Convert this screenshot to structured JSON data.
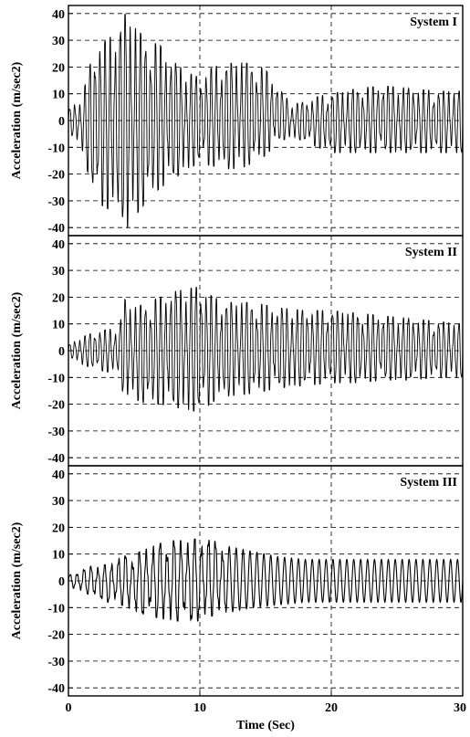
{
  "chart_data": [
    {
      "type": "line",
      "title": "System I",
      "xlabel": "",
      "ylabel": "Acceleration (m/sec2)",
      "xlim": [
        0,
        30
      ],
      "ylim": [
        -43,
        43
      ],
      "xticks": [
        0,
        10,
        20,
        30
      ],
      "yticks": [
        -40,
        -30,
        -20,
        -10,
        0,
        10,
        20,
        30,
        40
      ],
      "grid": "dashed",
      "envelope": {
        "t": [
          0,
          1,
          2,
          3,
          4,
          4.5,
          5,
          6,
          7,
          8,
          9,
          10,
          11,
          12,
          13,
          14,
          15,
          16,
          17,
          18,
          19,
          20,
          22,
          24,
          26,
          28,
          30
        ],
        "upper": [
          4,
          8,
          28,
          30,
          36,
          42,
          35,
          30,
          28,
          22,
          18,
          16,
          20,
          21,
          22,
          21,
          19,
          12,
          6,
          7,
          9,
          10,
          12,
          13,
          12,
          11,
          11
        ],
        "lower": [
          -4,
          -10,
          -30,
          -33,
          -35,
          -40,
          -36,
          -30,
          -25,
          -22,
          -18,
          -16,
          -17,
          -18,
          -18,
          -16,
          -13,
          -8,
          -6,
          -8,
          -10,
          -12,
          -12,
          -12,
          -12,
          -12,
          -12
        ]
      }
    },
    {
      "type": "line",
      "title": "System II",
      "xlabel": "",
      "ylabel": "Acceleration (m/sec2)",
      "xlim": [
        0,
        30
      ],
      "ylim": [
        -43,
        43
      ],
      "xticks": [
        0,
        10,
        20,
        30
      ],
      "yticks": [
        -40,
        -30,
        -20,
        -10,
        0,
        10,
        20,
        30,
        40
      ],
      "grid": "dashed",
      "envelope": {
        "t": [
          0,
          1,
          2,
          3,
          3.9,
          4.1,
          5,
          6,
          7,
          8,
          9,
          10,
          11,
          12,
          14,
          16,
          18,
          20,
          22,
          24,
          26,
          28,
          30
        ],
        "upper": [
          2,
          5,
          7,
          8,
          8,
          20,
          16,
          18,
          20,
          22,
          23,
          24,
          20,
          18,
          18,
          16,
          15,
          15,
          14,
          13,
          12,
          11,
          10
        ],
        "lower": [
          -2,
          -5,
          -7,
          -8,
          -8,
          -15,
          -18,
          -20,
          -20,
          -21,
          -22,
          -23,
          -19,
          -17,
          -16,
          -14,
          -13,
          -12,
          -12,
          -11,
          -11,
          -10,
          -10
        ]
      }
    },
    {
      "type": "line",
      "title": "System III",
      "xlabel": "Time (Sec)",
      "ylabel": "Acceleration (m/sec2)",
      "xlim": [
        0,
        30
      ],
      "ylim": [
        -43,
        43
      ],
      "xticks": [
        0,
        10,
        20,
        30
      ],
      "yticks": [
        -40,
        -30,
        -20,
        -10,
        0,
        10,
        20,
        30,
        40
      ],
      "grid": "dashed",
      "envelope": {
        "t": [
          0,
          1,
          2,
          3,
          4,
          5,
          6,
          7,
          8,
          9,
          10,
          11,
          12,
          14,
          16,
          18,
          20,
          22,
          24,
          26,
          28,
          30
        ],
        "upper": [
          2,
          4,
          6,
          6,
          9,
          10,
          12,
          14,
          15,
          15,
          16,
          15,
          13,
          11,
          9,
          8,
          8,
          8,
          8,
          8,
          8,
          8
        ],
        "lower": [
          -2,
          -4,
          -6,
          -8,
          -9,
          -11,
          -13,
          -14,
          -15,
          -15,
          -15,
          -13,
          -12,
          -10,
          -9,
          -8,
          -8,
          -8,
          -8,
          -8,
          -8,
          -8
        ]
      }
    }
  ]
}
